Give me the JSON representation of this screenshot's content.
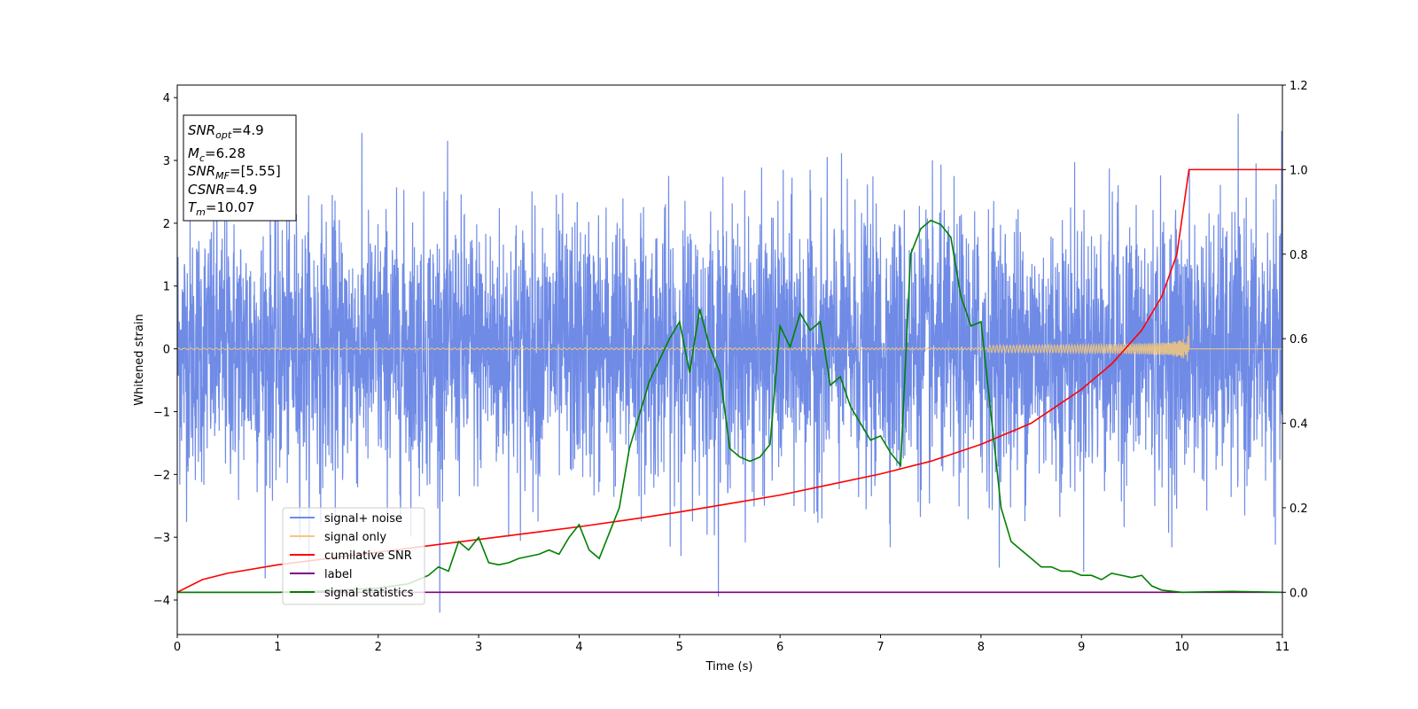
{
  "chart_data": {
    "type": "line",
    "xlabel": "Time (s)",
    "ylabel": "Whitened strain",
    "xlim": [
      0,
      11
    ],
    "ylim": [
      -4.55,
      4.2
    ],
    "y2lim": [
      -0.1,
      1.2
    ],
    "x_ticks": [
      "0",
      "1",
      "2",
      "3",
      "4",
      "5",
      "6",
      "7",
      "8",
      "9",
      "10",
      "11"
    ],
    "y_ticks": [
      "4",
      "3",
      "2",
      "1",
      "0",
      "−1",
      "−2",
      "−3",
      "−4"
    ],
    "y2_ticks": [
      "1.2",
      "1.0",
      "0.8",
      "0.6",
      "0.4",
      "0.2",
      "0.0"
    ],
    "grid": false,
    "legend_position": "lower-left",
    "info_box": {
      "snr_opt": {
        "sym": "SNR",
        "sub": "opt",
        "value": "=4.9"
      },
      "mc": {
        "sym": "M",
        "sub": "c",
        "value": "=6.28"
      },
      "snr_mf": {
        "sym": "SNR",
        "sub": "MF",
        "value": "=[5.55]"
      },
      "csnr": {
        "sym": "CSNR",
        "sub": "",
        "value": "=4.9"
      },
      "tm": {
        "sym": "T",
        "sub": "m",
        "value": "=10.07"
      }
    },
    "series": [
      {
        "name": "signal+ noise",
        "color": "#6f8be6",
        "axis": "left",
        "description_kind": "noise",
        "std": 1.0,
        "x_range": [
          0,
          11
        ]
      },
      {
        "name": "signal only",
        "color": "#f5c87a",
        "axis": "left",
        "description_kind": "chirp",
        "merge_time": 10.07,
        "peak_amplitude": 0.55
      },
      {
        "name": "cumilative SNR",
        "color": "#ff0000",
        "axis": "right",
        "x": [
          0,
          0.25,
          0.5,
          1,
          1.5,
          2,
          2.5,
          3,
          3.5,
          4,
          4.5,
          5,
          5.5,
          6,
          6.5,
          7,
          7.5,
          8,
          8.5,
          9,
          9.3,
          9.6,
          9.8,
          9.95,
          10.07,
          11
        ],
        "y": [
          0.0,
          0.03,
          0.045,
          0.065,
          0.08,
          0.095,
          0.11,
          0.125,
          0.14,
          0.155,
          0.172,
          0.19,
          0.21,
          0.23,
          0.255,
          0.28,
          0.31,
          0.35,
          0.4,
          0.48,
          0.54,
          0.62,
          0.7,
          0.8,
          1.0,
          1.0
        ]
      },
      {
        "name": "label",
        "color": "#800080",
        "axis": "right",
        "x": [
          0,
          11
        ],
        "y": [
          0.0,
          0.0
        ]
      },
      {
        "name": "signal statistics",
        "color": "#008000",
        "axis": "right",
        "x": [
          0,
          0.5,
          1,
          1.5,
          2,
          2.3,
          2.5,
          2.6,
          2.7,
          2.8,
          2.9,
          3.0,
          3.1,
          3.2,
          3.3,
          3.4,
          3.5,
          3.6,
          3.7,
          3.8,
          3.9,
          4.0,
          4.1,
          4.2,
          4.3,
          4.4,
          4.5,
          4.6,
          4.7,
          4.8,
          4.9,
          5.0,
          5.1,
          5.2,
          5.3,
          5.4,
          5.5,
          5.6,
          5.7,
          5.8,
          5.9,
          6.0,
          6.1,
          6.2,
          6.3,
          6.4,
          6.5,
          6.6,
          6.7,
          6.8,
          6.9,
          7.0,
          7.1,
          7.2,
          7.3,
          7.4,
          7.5,
          7.6,
          7.7,
          7.8,
          7.9,
          8.0,
          8.1,
          8.2,
          8.3,
          8.4,
          8.5,
          8.6,
          8.7,
          8.8,
          8.9,
          9.0,
          9.1,
          9.2,
          9.3,
          9.4,
          9.5,
          9.6,
          9.7,
          9.8,
          10,
          10.5,
          11
        ],
        "y": [
          0.0,
          0.0,
          0.0,
          0.003,
          0.01,
          0.02,
          0.04,
          0.06,
          0.05,
          0.12,
          0.1,
          0.13,
          0.07,
          0.065,
          0.07,
          0.08,
          0.085,
          0.09,
          0.1,
          0.09,
          0.13,
          0.16,
          0.1,
          0.08,
          0.14,
          0.2,
          0.34,
          0.42,
          0.5,
          0.55,
          0.6,
          0.64,
          0.52,
          0.67,
          0.58,
          0.52,
          0.34,
          0.32,
          0.31,
          0.32,
          0.35,
          0.63,
          0.58,
          0.66,
          0.62,
          0.64,
          0.49,
          0.51,
          0.44,
          0.4,
          0.36,
          0.37,
          0.33,
          0.3,
          0.8,
          0.86,
          0.88,
          0.87,
          0.84,
          0.7,
          0.63,
          0.64,
          0.42,
          0.2,
          0.12,
          0.1,
          0.08,
          0.06,
          0.06,
          0.05,
          0.05,
          0.04,
          0.04,
          0.03,
          0.045,
          0.04,
          0.035,
          0.04,
          0.015,
          0.005,
          0.0,
          0.002,
          0.0
        ]
      }
    ]
  }
}
